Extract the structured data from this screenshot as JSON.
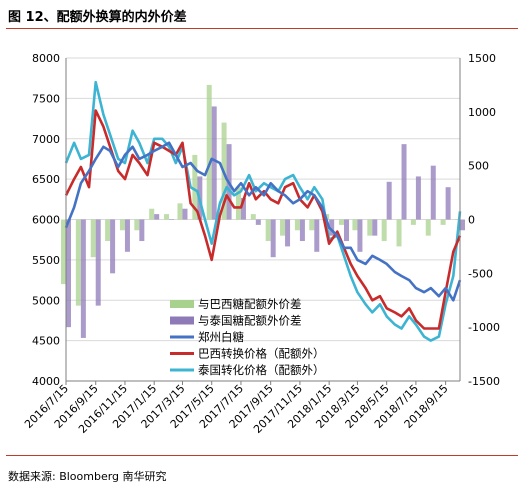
{
  "figure": {
    "title": "图 12、配额外换算的内外价差",
    "source": "数据来源: Bloomberg 南华研究"
  },
  "colors": {
    "brazil_spread": "#a9d18e",
    "thai_spread": "#8f7ab8",
    "zhengzhou": "#4472c4",
    "brazil_price": "#c82b2b",
    "thai_price": "#3cb4d2"
  },
  "chart_data": {
    "type": "line",
    "x_tick_labels": [
      "2016/7/15",
      "2016/9/15",
      "2016/11/15",
      "2017/1/15",
      "2017/3/15",
      "2017/5/15",
      "2017/7/15",
      "2017/9/15",
      "2017/11/15",
      "2018/1/15",
      "2018/3/15",
      "2018/5/15",
      "2018/7/15",
      "2018/9/15"
    ],
    "x_range": [
      "2016/7/15",
      "2018/10/15"
    ],
    "y_left": {
      "min": 4000,
      "max": 8000,
      "ticks": [
        4000,
        4500,
        5000,
        5500,
        6000,
        6500,
        7000,
        7500,
        8000
      ]
    },
    "y_right": {
      "min": -1500,
      "max": 1500,
      "ticks": [
        -1500,
        -1000,
        -500,
        0,
        500,
        1000,
        1500
      ]
    },
    "grid": "horizontal",
    "legend_position": "center-bottom",
    "series": [
      {
        "name": "与巴西糖配额外价差",
        "axis": "right",
        "kind": "bar",
        "x": [
          "2016/7/15",
          "2016/8/15",
          "2016/9/15",
          "2016/10/15",
          "2016/11/15",
          "2016/12/15",
          "2017/1/15",
          "2017/2/15",
          "2017/3/15",
          "2017/4/15",
          "2017/5/15",
          "2017/6/15",
          "2017/7/15",
          "2017/8/15",
          "2017/9/15",
          "2017/10/15",
          "2017/11/15",
          "2017/12/15",
          "2018/1/15",
          "2018/2/15",
          "2018/3/15",
          "2018/4/15",
          "2018/5/15",
          "2018/6/15",
          "2018/7/15",
          "2018/8/15",
          "2018/9/15",
          "2018/10/15"
        ],
        "values": [
          -600,
          -800,
          -350,
          -200,
          -100,
          -100,
          100,
          50,
          150,
          600,
          1250,
          900,
          300,
          50,
          -200,
          -150,
          -100,
          -100,
          50,
          -50,
          -100,
          -150,
          -200,
          -250,
          -50,
          -150,
          -50,
          0
        ]
      },
      {
        "name": "与泰国糖配额外价差",
        "axis": "right",
        "kind": "bar",
        "x": [
          "2016/7/15",
          "2016/8/15",
          "2016/9/15",
          "2016/10/15",
          "2016/11/15",
          "2016/12/15",
          "2017/1/15",
          "2017/2/15",
          "2017/3/15",
          "2017/4/15",
          "2017/5/15",
          "2017/6/15",
          "2017/7/15",
          "2017/8/15",
          "2017/9/15",
          "2017/10/15",
          "2017/11/15",
          "2017/12/15",
          "2018/1/15",
          "2018/2/15",
          "2018/3/15",
          "2018/4/15",
          "2018/5/15",
          "2018/6/15",
          "2018/7/15",
          "2018/8/15",
          "2018/9/15",
          "2018/10/15"
        ],
        "values": [
          -1000,
          -1100,
          -800,
          -500,
          -300,
          -200,
          50,
          0,
          100,
          400,
          1050,
          700,
          200,
          -50,
          -350,
          -250,
          -200,
          -300,
          -150,
          -200,
          -300,
          -150,
          350,
          700,
          400,
          500,
          300,
          -100
        ]
      },
      {
        "name": "郑州白糖",
        "axis": "left",
        "kind": "line",
        "x": [
          "2016/7/15",
          "2016/8/1",
          "2016/8/15",
          "2016/9/1",
          "2016/9/15",
          "2016/10/1",
          "2016/10/15",
          "2016/11/1",
          "2016/11/15",
          "2016/12/1",
          "2016/12/15",
          "2017/1/1",
          "2017/1/15",
          "2017/2/1",
          "2017/2/15",
          "2017/3/1",
          "2017/3/15",
          "2017/4/1",
          "2017/4/15",
          "2017/5/1",
          "2017/5/15",
          "2017/6/1",
          "2017/6/15",
          "2017/7/1",
          "2017/7/15",
          "2017/8/1",
          "2017/8/15",
          "2017/9/1",
          "2017/9/15",
          "2017/10/1",
          "2017/10/15",
          "2017/11/1",
          "2017/11/15",
          "2017/12/1",
          "2017/12/15",
          "2018/1/1",
          "2018/1/15",
          "2018/2/1",
          "2018/2/15",
          "2018/3/1",
          "2018/3/15",
          "2018/4/1",
          "2018/4/15",
          "2018/5/1",
          "2018/5/15",
          "2018/6/1",
          "2018/6/15",
          "2018/7/1",
          "2018/7/15",
          "2018/8/1",
          "2018/8/15",
          "2018/9/1",
          "2018/9/15",
          "2018/10/1",
          "2018/10/15"
        ],
        "values": [
          5900,
          6150,
          6450,
          6600,
          6750,
          6900,
          6850,
          6650,
          6800,
          6900,
          6750,
          6800,
          6850,
          6900,
          6950,
          6800,
          6650,
          6700,
          6600,
          6550,
          6750,
          6700,
          6500,
          6350,
          6450,
          6300,
          6400,
          6300,
          6450,
          6350,
          6300,
          6200,
          6250,
          6350,
          6300,
          6150,
          5900,
          5800,
          5650,
          5650,
          5500,
          5450,
          5550,
          5500,
          5450,
          5350,
          5300,
          5250,
          5150,
          5100,
          5150,
          5050,
          5150,
          5000,
          5250
        ]
      },
      {
        "name": "巴西转换价格（配额外）",
        "axis": "left",
        "kind": "line",
        "x": [
          "2016/7/15",
          "2016/8/1",
          "2016/8/15",
          "2016/9/1",
          "2016/9/15",
          "2016/10/1",
          "2016/10/15",
          "2016/11/1",
          "2016/11/15",
          "2016/12/1",
          "2016/12/15",
          "2017/1/1",
          "2017/1/15",
          "2017/2/1",
          "2017/2/15",
          "2017/3/1",
          "2017/3/15",
          "2017/4/1",
          "2017/4/15",
          "2017/5/1",
          "2017/5/15",
          "2017/6/1",
          "2017/6/15",
          "2017/7/1",
          "2017/7/15",
          "2017/8/1",
          "2017/8/15",
          "2017/9/1",
          "2017/9/15",
          "2017/10/1",
          "2017/10/15",
          "2017/11/1",
          "2017/11/15",
          "2017/12/1",
          "2017/12/15",
          "2018/1/1",
          "2018/1/15",
          "2018/2/1",
          "2018/2/15",
          "2018/3/1",
          "2018/3/15",
          "2018/4/1",
          "2018/4/15",
          "2018/5/1",
          "2018/5/15",
          "2018/6/1",
          "2018/6/15",
          "2018/7/1",
          "2018/7/15",
          "2018/8/1",
          "2018/8/15",
          "2018/9/1",
          "2018/9/15",
          "2018/10/1",
          "2018/10/15"
        ],
        "values": [
          6300,
          6500,
          6650,
          6400,
          7350,
          7150,
          6900,
          6600,
          6500,
          6800,
          6700,
          6550,
          6950,
          6900,
          6850,
          6800,
          6950,
          6200,
          6100,
          5800,
          5500,
          6050,
          6300,
          6150,
          6150,
          6450,
          6250,
          6350,
          6250,
          6200,
          6400,
          6450,
          6250,
          6150,
          6300,
          6100,
          5700,
          5850,
          5650,
          5450,
          5300,
          5150,
          5000,
          5050,
          4900,
          4850,
          4800,
          4900,
          4750,
          4650,
          4650,
          4650,
          5100,
          5600,
          5800
        ]
      },
      {
        "name": "泰国转化价格（配额外）",
        "axis": "left",
        "kind": "line",
        "x": [
          "2016/7/15",
          "2016/8/1",
          "2016/8/15",
          "2016/9/1",
          "2016/9/15",
          "2016/10/1",
          "2016/10/15",
          "2016/11/1",
          "2016/11/15",
          "2016/12/1",
          "2016/12/15",
          "2017/1/1",
          "2017/1/15",
          "2017/2/1",
          "2017/2/15",
          "2017/3/1",
          "2017/3/15",
          "2017/4/1",
          "2017/4/15",
          "2017/5/1",
          "2017/5/15",
          "2017/6/1",
          "2017/6/15",
          "2017/7/1",
          "2017/7/15",
          "2017/8/1",
          "2017/8/15",
          "2017/9/1",
          "2017/9/15",
          "2017/10/1",
          "2017/10/15",
          "2017/11/1",
          "2017/11/15",
          "2017/12/1",
          "2017/12/15",
          "2018/1/1",
          "2018/1/15",
          "2018/2/1",
          "2018/2/15",
          "2018/3/1",
          "2018/3/15",
          "2018/4/1",
          "2018/4/15",
          "2018/5/1",
          "2018/5/15",
          "2018/6/1",
          "2018/6/15",
          "2018/7/1",
          "2018/7/15",
          "2018/8/1",
          "2018/8/15",
          "2018/9/1",
          "2018/9/15",
          "2018/10/1",
          "2018/10/15"
        ],
        "values": [
          6700,
          6950,
          6750,
          6800,
          7700,
          7300,
          7050,
          6750,
          6700,
          7100,
          6950,
          6700,
          7000,
          7000,
          6900,
          6700,
          6900,
          6400,
          6350,
          6000,
          5700,
          6200,
          6400,
          6300,
          6350,
          6550,
          6350,
          6450,
          6400,
          6350,
          6500,
          6550,
          6400,
          6250,
          6400,
          6250,
          5750,
          5800,
          5550,
          5300,
          5100,
          4950,
          4850,
          4950,
          4800,
          4700,
          4650,
          4800,
          4700,
          4550,
          4500,
          4550,
          4950,
          5300,
          6100
        ]
      }
    ]
  }
}
